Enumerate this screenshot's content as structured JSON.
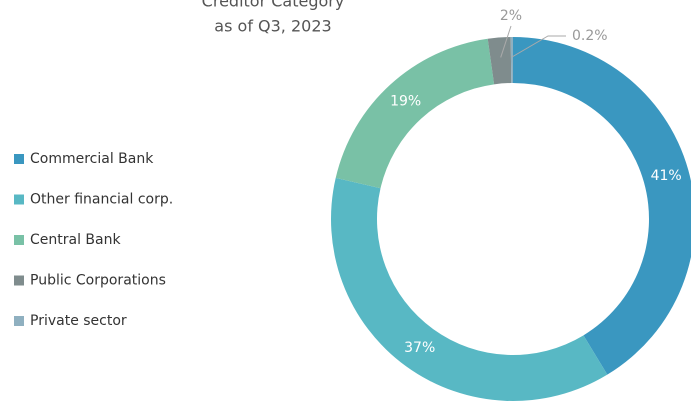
{
  "chart_data": {
    "type": "donut",
    "title": "Creditor Category",
    "subtitle": "as of Q3, 2023",
    "categories": [
      "Commercial Bank",
      "Other financial corp.",
      "Central Bank",
      "Public Corporations",
      "Private sector"
    ],
    "values": [
      41,
      37,
      19,
      2,
      0.2
    ],
    "value_labels": [
      "41%",
      "37%",
      "19%",
      "2%",
      "0.2%"
    ],
    "colors": [
      "#3a97c0",
      "#58b8c4",
      "#79c1a6",
      "#7f8c8d",
      "#8fb0c0"
    ],
    "legend": "left"
  }
}
